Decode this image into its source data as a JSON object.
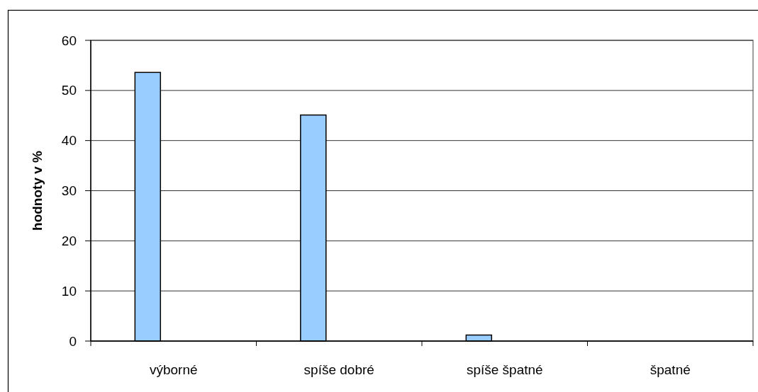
{
  "chart_data": {
    "type": "bar",
    "ylabel": "hodnoty v %",
    "categories": [
      "výborné",
      "spíše dobré",
      "spíše špatné",
      "špatné"
    ],
    "values": [
      53.6,
      45.1,
      1.2,
      0
    ],
    "color": "#99ccff",
    "ylim": [
      0,
      60
    ],
    "yticks": [
      0,
      10,
      20,
      30,
      40,
      50,
      60
    ],
    "grid": "y"
  }
}
